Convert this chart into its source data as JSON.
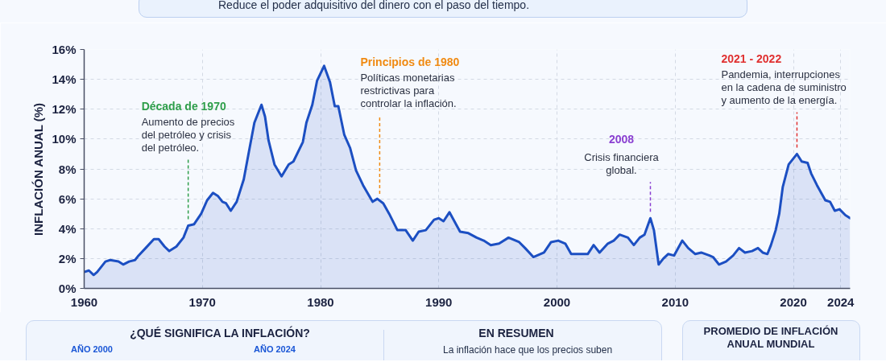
{
  "chart_data": {
    "type": "area",
    "ylabel": "INFLACIÓN ANUAL (%)",
    "x": [
      1960.0,
      1960.4,
      1960.8,
      1961.1,
      1961.8,
      1962.2,
      1962.9,
      1963.3,
      1963.8,
      1964.3,
      1964.6,
      1965.2,
      1965.9,
      1966.3,
      1966.8,
      1967.2,
      1967.8,
      1968.4,
      1968.8,
      1969.3,
      1969.9,
      1970.4,
      1970.9,
      1971.3,
      1971.7,
      1972.0,
      1972.4,
      1972.9,
      1973.5,
      1973.9,
      1974.4,
      1975.0,
      1975.3,
      1975.6,
      1976.1,
      1976.7,
      1977.3,
      1977.7,
      1978.5,
      1978.8,
      1979.3,
      1979.7,
      1980.3,
      1980.8,
      1981.2,
      1981.5,
      1982.0,
      1982.5,
      1983.0,
      1983.6,
      1984.4,
      1984.8,
      1985.3,
      1985.8,
      1986.5,
      1987.2,
      1987.8,
      1988.3,
      1988.9,
      1989.6,
      1990.0,
      1990.4,
      1990.9,
      1991.8,
      1992.5,
      1993.2,
      1993.8,
      1994.4,
      1995.1,
      1995.9,
      1996.8,
      1997.3,
      1998.0,
      1998.9,
      1999.5,
      2000.1,
      2000.7,
      2001.2,
      2001.9,
      2002.6,
      2003.1,
      2003.6,
      2004.3,
      2004.8,
      2005.3,
      2006.0,
      2006.5,
      2007.0,
      2007.4,
      2007.9,
      2008.2,
      2008.6,
      2009.0,
      2009.4,
      2009.9,
      2010.6,
      2011.1,
      2011.7,
      2012.2,
      2012.9,
      2013.2,
      2013.7,
      2014.3,
      2014.9,
      2015.4,
      2015.9,
      2016.5,
      2017.0,
      2017.4,
      2017.8,
      2018.1,
      2018.5,
      2018.8,
      2019.1,
      2019.6,
      2020.1,
      2020.3,
      2020.7,
      2021.2,
      2021.5,
      2022.0,
      2022.7,
      2023.1,
      2023.5,
      2023.9,
      2024.4,
      2024.8
    ],
    "series": [
      {
        "color": "#1c4fc2",
        "values": [
          1.1,
          1.2,
          0.9,
          1.1,
          1.8,
          1.9,
          1.8,
          1.6,
          1.8,
          1.9,
          2.2,
          2.7,
          3.3,
          3.3,
          2.8,
          2.5,
          2.8,
          3.4,
          4.2,
          4.3,
          5.0,
          5.9,
          6.4,
          6.2,
          5.8,
          5.7,
          5.2,
          5.8,
          7.3,
          9.0,
          11.1,
          12.3,
          11.5,
          9.9,
          8.3,
          7.5,
          8.3,
          8.5,
          9.8,
          11.1,
          12.3,
          13.9,
          14.9,
          13.8,
          12.2,
          12.2,
          10.3,
          9.4,
          7.9,
          6.9,
          5.8,
          6.0,
          5.7,
          5.0,
          3.9,
          3.9,
          3.2,
          3.8,
          3.9,
          4.6,
          4.7,
          4.5,
          5.1,
          3.8,
          3.7,
          3.4,
          3.2,
          2.9,
          3.0,
          3.4,
          3.1,
          2.7,
          2.1,
          2.4,
          3.1,
          3.2,
          3.0,
          2.3,
          2.3,
          2.3,
          2.9,
          2.4,
          3.0,
          3.2,
          3.6,
          3.4,
          2.9,
          3.4,
          3.6,
          4.7,
          3.9,
          1.6,
          2.0,
          2.3,
          2.2,
          3.2,
          2.7,
          2.3,
          2.4,
          2.2,
          2.1,
          1.6,
          1.8,
          2.2,
          2.7,
          2.4,
          2.5,
          2.7,
          2.4,
          2.3,
          2.9,
          3.9,
          5.0,
          6.8,
          8.3,
          8.8,
          9.0,
          8.5,
          8.4,
          7.7,
          6.9,
          5.9,
          5.8,
          5.2,
          5.3,
          4.9,
          4.7
        ]
      }
    ],
    "xlim": [
      1960,
      2024.8
    ],
    "xticks": [
      1960,
      1970,
      1980,
      1990,
      2000,
      2010,
      2020,
      2024
    ],
    "ylim": [
      0,
      16
    ],
    "yticks": [
      {
        "value": 0,
        "label": "0%"
      },
      {
        "value": 2,
        "label": "2%"
      },
      {
        "value": 4,
        "label": "4%"
      },
      {
        "value": 6,
        "label": "6%"
      },
      {
        "value": 8,
        "label": "8%"
      },
      {
        "value": 10,
        "label": "10%"
      },
      {
        "value": 12,
        "label": "12%"
      },
      {
        "value": 14,
        "label": "14%"
      },
      {
        "value": 16,
        "label": "16%"
      }
    ],
    "grid": true,
    "annotations": [
      {
        "text": "Década de 1970\nAumento de precios\ndel petróleo y crisis\ndel petróleo.",
        "x": 1968.8,
        "y": 4.2
      },
      {
        "text": "Principios de 1980\nPolíticas monetarias\nrestrictivas para\ncontrolar la inflación.",
        "x": 1985.0,
        "y": 5.9
      },
      {
        "text": "2008\nCrisis financiera\nglobal.",
        "x": 2007.9,
        "y": 4.7
      },
      {
        "text": "2021 - 2022\nPandemia, interrupciones\nen la cadena de suministro\ny aumento de la energía.",
        "x": 2020.3,
        "y": 9.0
      },
      "Reduce el poder adquisitivo del dinero con el paso del tiempo.",
      "¿QUÉ SIGNIFICA LA INFLACIÓN?",
      "AÑO 2000",
      "AÑO 2024",
      "EN RESUMEN",
      "La inflación hace que los precios suben",
      "PROMEDIO DE INFLACIÓN ANUAL MUNDIAL"
    ]
  }
}
